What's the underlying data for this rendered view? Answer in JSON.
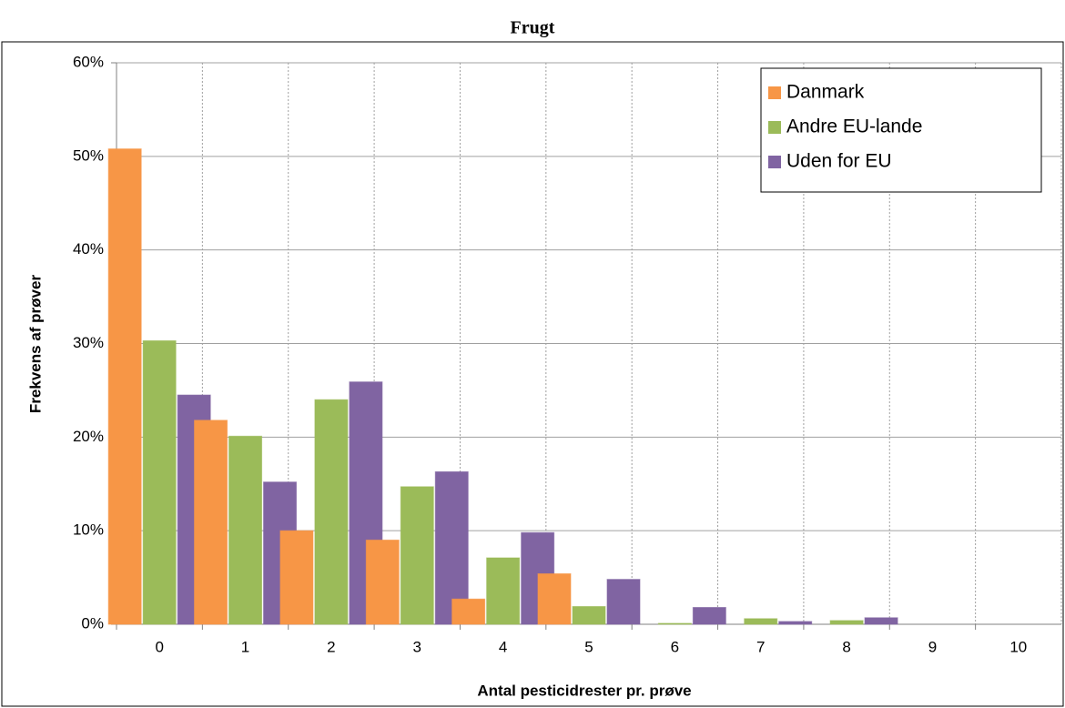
{
  "chart_data": {
    "type": "bar",
    "title": "Frugt",
    "x_label": "Antal pesticidrester pr. prøve",
    "y_label": "Frekvens af prøver",
    "categories": [
      "0",
      "1",
      "2",
      "3",
      "4",
      "5",
      "6",
      "7",
      "8",
      "9",
      "10"
    ],
    "series": [
      {
        "name": "Danmark",
        "color": "#f79646",
        "values": [
          50.8,
          21.8,
          10,
          9,
          2.7,
          5.4,
          0,
          0,
          0,
          0,
          0
        ]
      },
      {
        "name": "Andre EU-lande",
        "color": "#9bbb59",
        "values": [
          30.3,
          20.1,
          24,
          14.7,
          7.1,
          1.9,
          0.1,
          0.6,
          0.4,
          0,
          0
        ]
      },
      {
        "name": "Uden for EU",
        "color": "#8064a2",
        "values": [
          24.5,
          15.2,
          25.9,
          16.3,
          9.8,
          4.8,
          1.8,
          0.3,
          0.7,
          0,
          0
        ]
      }
    ],
    "ylim": [
      0,
      60
    ],
    "yticks": [
      {
        "value": 0,
        "label": "0%"
      },
      {
        "value": 10,
        "label": "10%"
      },
      {
        "value": 20,
        "label": "20%"
      },
      {
        "value": 30,
        "label": "30%"
      },
      {
        "value": 40,
        "label": "40%"
      },
      {
        "value": 50,
        "label": "50%"
      },
      {
        "value": 60,
        "label": "60%"
      }
    ],
    "grid": true,
    "legend": "upper right"
  }
}
